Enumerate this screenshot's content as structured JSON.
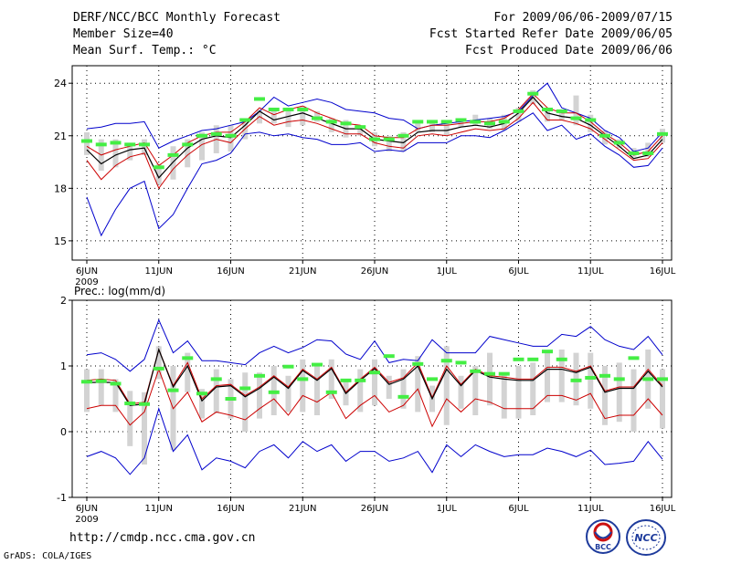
{
  "header": {
    "title": "DERF/NCC/BCC Monthly Forecast",
    "member_size": "Member Size=40",
    "variable": "Mean Surf. Temp.: °C",
    "period": "For 2009/06/06-2009/07/15",
    "started": "Fcst Started Refer Date 2009/06/05",
    "produced": "Fcst Produced Date 2009/06/06"
  },
  "footer": {
    "url": "http://cmdp.ncc.cma.gov.cn",
    "credit": "GrADS: COLA/IGES",
    "logo_left": "BCC",
    "logo_right": "NCC"
  },
  "colors": {
    "bar": "#d3d3d3",
    "clim": "#44ee44",
    "mean": "#000000",
    "spread": "#cc0000",
    "envelope": "#0000cc"
  },
  "chart_data": [
    {
      "type": "line",
      "id": "temperature",
      "title": "",
      "ylabel": "",
      "ylim": [
        13.9,
        25.0
      ],
      "yticks": [
        15,
        18,
        21,
        24
      ],
      "ytick_labels": [
        "15",
        "18",
        "21",
        "24"
      ],
      "x_days": 40,
      "xtick_days": [
        0,
        5,
        10,
        15,
        20,
        25,
        30,
        35,
        40
      ],
      "xtick_labels": [
        "6JUN",
        "11JUN",
        "16JUN",
        "21JUN",
        "26JUN",
        "1JUL",
        "6JUL",
        "11JUL",
        "16JUL"
      ],
      "year_label": "2009",
      "series": [
        {
          "name": "max",
          "values": [
            21.4,
            21.5,
            21.7,
            21.7,
            21.8,
            20.3,
            20.7,
            21.0,
            21.3,
            21.4,
            21.6,
            21.8,
            22.4,
            23.2,
            22.7,
            22.9,
            23.1,
            22.9,
            22.5,
            22.4,
            22.3,
            22.0,
            21.9,
            21.4,
            21.6,
            21.7,
            21.8,
            21.9,
            22.0,
            22.1,
            22.4,
            23.3,
            24.0,
            22.6,
            22.3,
            22.0,
            21.3,
            20.9,
            20.1,
            20.3,
            21.2
          ]
        },
        {
          "name": "upper",
          "values": [
            20.4,
            19.9,
            20.2,
            20.4,
            20.6,
            19.3,
            19.9,
            20.6,
            21.0,
            21.2,
            21.2,
            21.8,
            22.6,
            22.2,
            22.5,
            22.7,
            22.3,
            22.0,
            21.7,
            21.6,
            21.0,
            20.9,
            20.9,
            21.4,
            21.6,
            21.6,
            21.7,
            21.8,
            21.8,
            22.0,
            22.5,
            23.4,
            22.6,
            22.3,
            22.3,
            21.8,
            21.1,
            20.6,
            19.9,
            20.1,
            21.0
          ]
        },
        {
          "name": "mean",
          "values": [
            20.2,
            19.4,
            19.9,
            20.2,
            20.3,
            18.6,
            19.5,
            20.3,
            20.8,
            21.0,
            20.9,
            21.6,
            22.4,
            21.9,
            22.1,
            22.3,
            22.0,
            21.7,
            21.4,
            21.4,
            20.8,
            20.7,
            20.6,
            21.2,
            21.3,
            21.3,
            21.5,
            21.6,
            21.5,
            21.7,
            22.3,
            23.2,
            22.3,
            22.1,
            22.0,
            21.6,
            21.0,
            20.4,
            19.7,
            19.9,
            20.8
          ]
        },
        {
          "name": "lower",
          "values": [
            19.6,
            18.5,
            19.3,
            19.8,
            20.0,
            18.0,
            19.1,
            19.9,
            20.5,
            20.8,
            20.6,
            21.4,
            22.1,
            21.6,
            21.8,
            21.9,
            21.7,
            21.4,
            21.1,
            21.1,
            20.6,
            20.4,
            20.3,
            21.0,
            21.1,
            21.0,
            21.2,
            21.4,
            21.3,
            21.4,
            22.0,
            22.9,
            21.9,
            21.9,
            21.7,
            21.4,
            20.8,
            20.2,
            19.6,
            19.7,
            20.6
          ]
        },
        {
          "name": "min",
          "values": [
            17.5,
            15.3,
            16.8,
            18.0,
            18.4,
            15.7,
            16.5,
            18.0,
            19.4,
            19.6,
            20.0,
            21.1,
            21.2,
            21.0,
            21.1,
            20.9,
            20.8,
            20.5,
            20.5,
            20.6,
            20.1,
            20.2,
            20.1,
            20.6,
            20.6,
            20.6,
            21.0,
            21.0,
            20.9,
            21.3,
            21.8,
            22.3,
            21.3,
            21.6,
            20.8,
            21.1,
            20.4,
            19.9,
            19.2,
            19.3,
            20.3
          ]
        },
        {
          "name": "bar_low",
          "values": [
            19.9,
            19.0,
            19.2,
            19.6,
            19.9,
            18.2,
            18.5,
            19.2,
            19.6,
            20.0,
            20.1,
            20.8,
            21.7,
            21.7,
            21.5,
            21.6,
            21.8,
            21.2,
            20.9,
            21.0,
            20.4,
            20.1,
            20.1,
            21.2,
            21.2,
            21.0,
            21.5,
            21.6,
            21.4,
            21.3,
            21.8,
            22.8,
            21.8,
            21.9,
            21.6,
            21.2,
            20.5,
            20.3,
            19.8,
            19.8,
            20.6
          ]
        },
        {
          "name": "bar_high",
          "values": [
            21.2,
            20.8,
            20.8,
            20.6,
            20.8,
            19.4,
            20.4,
            20.8,
            21.2,
            21.6,
            21.6,
            21.9,
            22.5,
            22.4,
            22.4,
            22.7,
            22.4,
            22.0,
            21.9,
            21.6,
            21.2,
            21.0,
            21.2,
            21.8,
            21.8,
            21.8,
            22.0,
            22.2,
            22.0,
            22.2,
            22.6,
            23.6,
            22.6,
            22.5,
            23.3,
            22.2,
            21.3,
            20.8,
            20.3,
            20.6,
            21.4
          ]
        },
        {
          "name": "clim",
          "values": [
            20.7,
            20.5,
            20.6,
            20.5,
            20.5,
            19.2,
            19.9,
            20.5,
            21.0,
            21.1,
            21.0,
            21.9,
            23.1,
            22.5,
            22.5,
            22.5,
            22.0,
            21.8,
            21.7,
            21.5,
            20.8,
            20.8,
            21.0,
            21.8,
            21.8,
            21.8,
            21.9,
            21.8,
            21.7,
            21.8,
            22.4,
            23.4,
            22.5,
            22.4,
            22.0,
            21.9,
            21.0,
            20.6,
            20.0,
            20.0,
            21.1
          ]
        }
      ]
    },
    {
      "type": "line",
      "id": "precipitation",
      "title": "Prec.: log(mm/d)",
      "ylabel": "",
      "ylim": [
        -1,
        2
      ],
      "yticks": [
        -1,
        0,
        1,
        2
      ],
      "ytick_labels": [
        "-1",
        "0",
        "1",
        "2"
      ],
      "x_days": 40,
      "xtick_days": [
        0,
        5,
        10,
        15,
        20,
        25,
        30,
        35,
        40
      ],
      "xtick_labels": [
        "6JUN",
        "11JUN",
        "16JUN",
        "21JUN",
        "26JUN",
        "1JUL",
        "6JUL",
        "11JUL",
        "16JUL"
      ],
      "year_label": "2009",
      "series": [
        {
          "name": "max",
          "values": [
            1.17,
            1.2,
            1.1,
            0.92,
            1.1,
            1.7,
            1.2,
            1.38,
            1.08,
            1.08,
            1.05,
            1.02,
            1.2,
            1.3,
            1.2,
            1.28,
            1.4,
            1.38,
            1.18,
            1.1,
            1.38,
            1.05,
            1.1,
            1.08,
            1.4,
            1.2,
            1.2,
            1.2,
            1.45,
            1.4,
            1.35,
            1.3,
            1.3,
            1.48,
            1.45,
            1.6,
            1.4,
            1.3,
            1.25,
            1.45,
            1.17
          ]
        },
        {
          "name": "upper",
          "values": [
            0.78,
            0.8,
            0.78,
            0.42,
            0.45,
            1.25,
            0.7,
            1.05,
            0.5,
            0.7,
            0.72,
            0.55,
            0.68,
            0.85,
            0.68,
            0.95,
            0.8,
            0.98,
            0.6,
            0.8,
            0.98,
            0.75,
            0.82,
            1.05,
            0.52,
            1.0,
            0.72,
            0.95,
            0.85,
            0.83,
            0.8,
            0.8,
            0.98,
            0.98,
            0.92,
            1.0,
            0.62,
            0.68,
            0.68,
            0.95,
            0.7
          ]
        },
        {
          "name": "mean",
          "values": [
            0.75,
            0.75,
            0.75,
            0.4,
            0.42,
            1.25,
            0.68,
            1.0,
            0.47,
            0.68,
            0.7,
            0.53,
            0.66,
            0.83,
            0.66,
            0.93,
            0.78,
            0.96,
            0.58,
            0.78,
            0.96,
            0.72,
            0.8,
            1.0,
            0.5,
            0.95,
            0.7,
            0.93,
            0.83,
            0.8,
            0.78,
            0.78,
            0.95,
            0.95,
            0.9,
            0.98,
            0.6,
            0.66,
            0.66,
            0.92,
            0.68
          ]
        },
        {
          "name": "lower",
          "values": [
            0.35,
            0.4,
            0.4,
            0.1,
            0.3,
            0.95,
            0.35,
            0.6,
            0.15,
            0.3,
            0.25,
            0.18,
            0.35,
            0.5,
            0.25,
            0.55,
            0.45,
            0.6,
            0.2,
            0.4,
            0.55,
            0.3,
            0.4,
            0.65,
            0.08,
            0.5,
            0.3,
            0.5,
            0.45,
            0.35,
            0.35,
            0.35,
            0.55,
            0.55,
            0.48,
            0.58,
            0.2,
            0.25,
            0.25,
            0.5,
            0.25
          ]
        },
        {
          "name": "min",
          "values": [
            -0.38,
            -0.3,
            -0.4,
            -0.65,
            -0.4,
            0.35,
            -0.3,
            -0.05,
            -0.58,
            -0.4,
            -0.45,
            -0.55,
            -0.3,
            -0.2,
            -0.4,
            -0.15,
            -0.3,
            -0.2,
            -0.45,
            -0.3,
            -0.3,
            -0.45,
            -0.4,
            -0.3,
            -0.62,
            -0.2,
            -0.38,
            -0.2,
            -0.3,
            -0.38,
            -0.35,
            -0.35,
            -0.25,
            -0.3,
            -0.38,
            -0.28,
            -0.5,
            -0.48,
            -0.45,
            -0.15,
            -0.42
          ]
        },
        {
          "name": "bar_low",
          "values": [
            0.3,
            0.4,
            0.3,
            -0.22,
            -0.5,
            0.8,
            -0.28,
            0.6,
            0.2,
            0.28,
            0.2,
            0.0,
            0.2,
            0.25,
            0.3,
            0.3,
            0.25,
            0.5,
            0.4,
            0.3,
            0.4,
            0.5,
            0.35,
            0.3,
            0.3,
            0.1,
            0.35,
            0.25,
            0.4,
            0.2,
            0.2,
            0.25,
            0.45,
            0.45,
            0.4,
            0.35,
            0.1,
            0.15,
            0.0,
            0.35,
            0.05
          ]
        },
        {
          "name": "bar_high",
          "values": [
            0.95,
            0.95,
            0.8,
            0.62,
            0.6,
            1.3,
            1.0,
            1.2,
            0.65,
            0.95,
            0.8,
            0.9,
            0.9,
            1.0,
            0.85,
            1.1,
            1.0,
            1.1,
            0.8,
            0.95,
            1.1,
            0.85,
            0.95,
            1.15,
            0.7,
            1.3,
            0.85,
            1.0,
            1.2,
            0.9,
            1.0,
            1.05,
            1.2,
            1.25,
            1.2,
            1.2,
            1.0,
            1.05,
            0.95,
            1.25,
            0.95
          ]
        },
        {
          "name": "clim",
          "values": [
            0.76,
            0.77,
            0.73,
            0.43,
            0.42,
            0.96,
            0.63,
            1.12,
            0.58,
            0.8,
            0.5,
            0.66,
            0.85,
            0.6,
            0.99,
            0.8,
            1.02,
            0.6,
            0.78,
            0.78,
            0.9,
            1.15,
            0.53,
            1.03,
            0.8,
            1.08,
            1.05,
            0.92,
            0.88,
            0.88,
            1.1,
            1.1,
            1.22,
            1.1,
            0.78,
            0.82,
            0.85,
            0.8,
            1.12,
            0.8,
            0.8
          ]
        }
      ]
    }
  ]
}
